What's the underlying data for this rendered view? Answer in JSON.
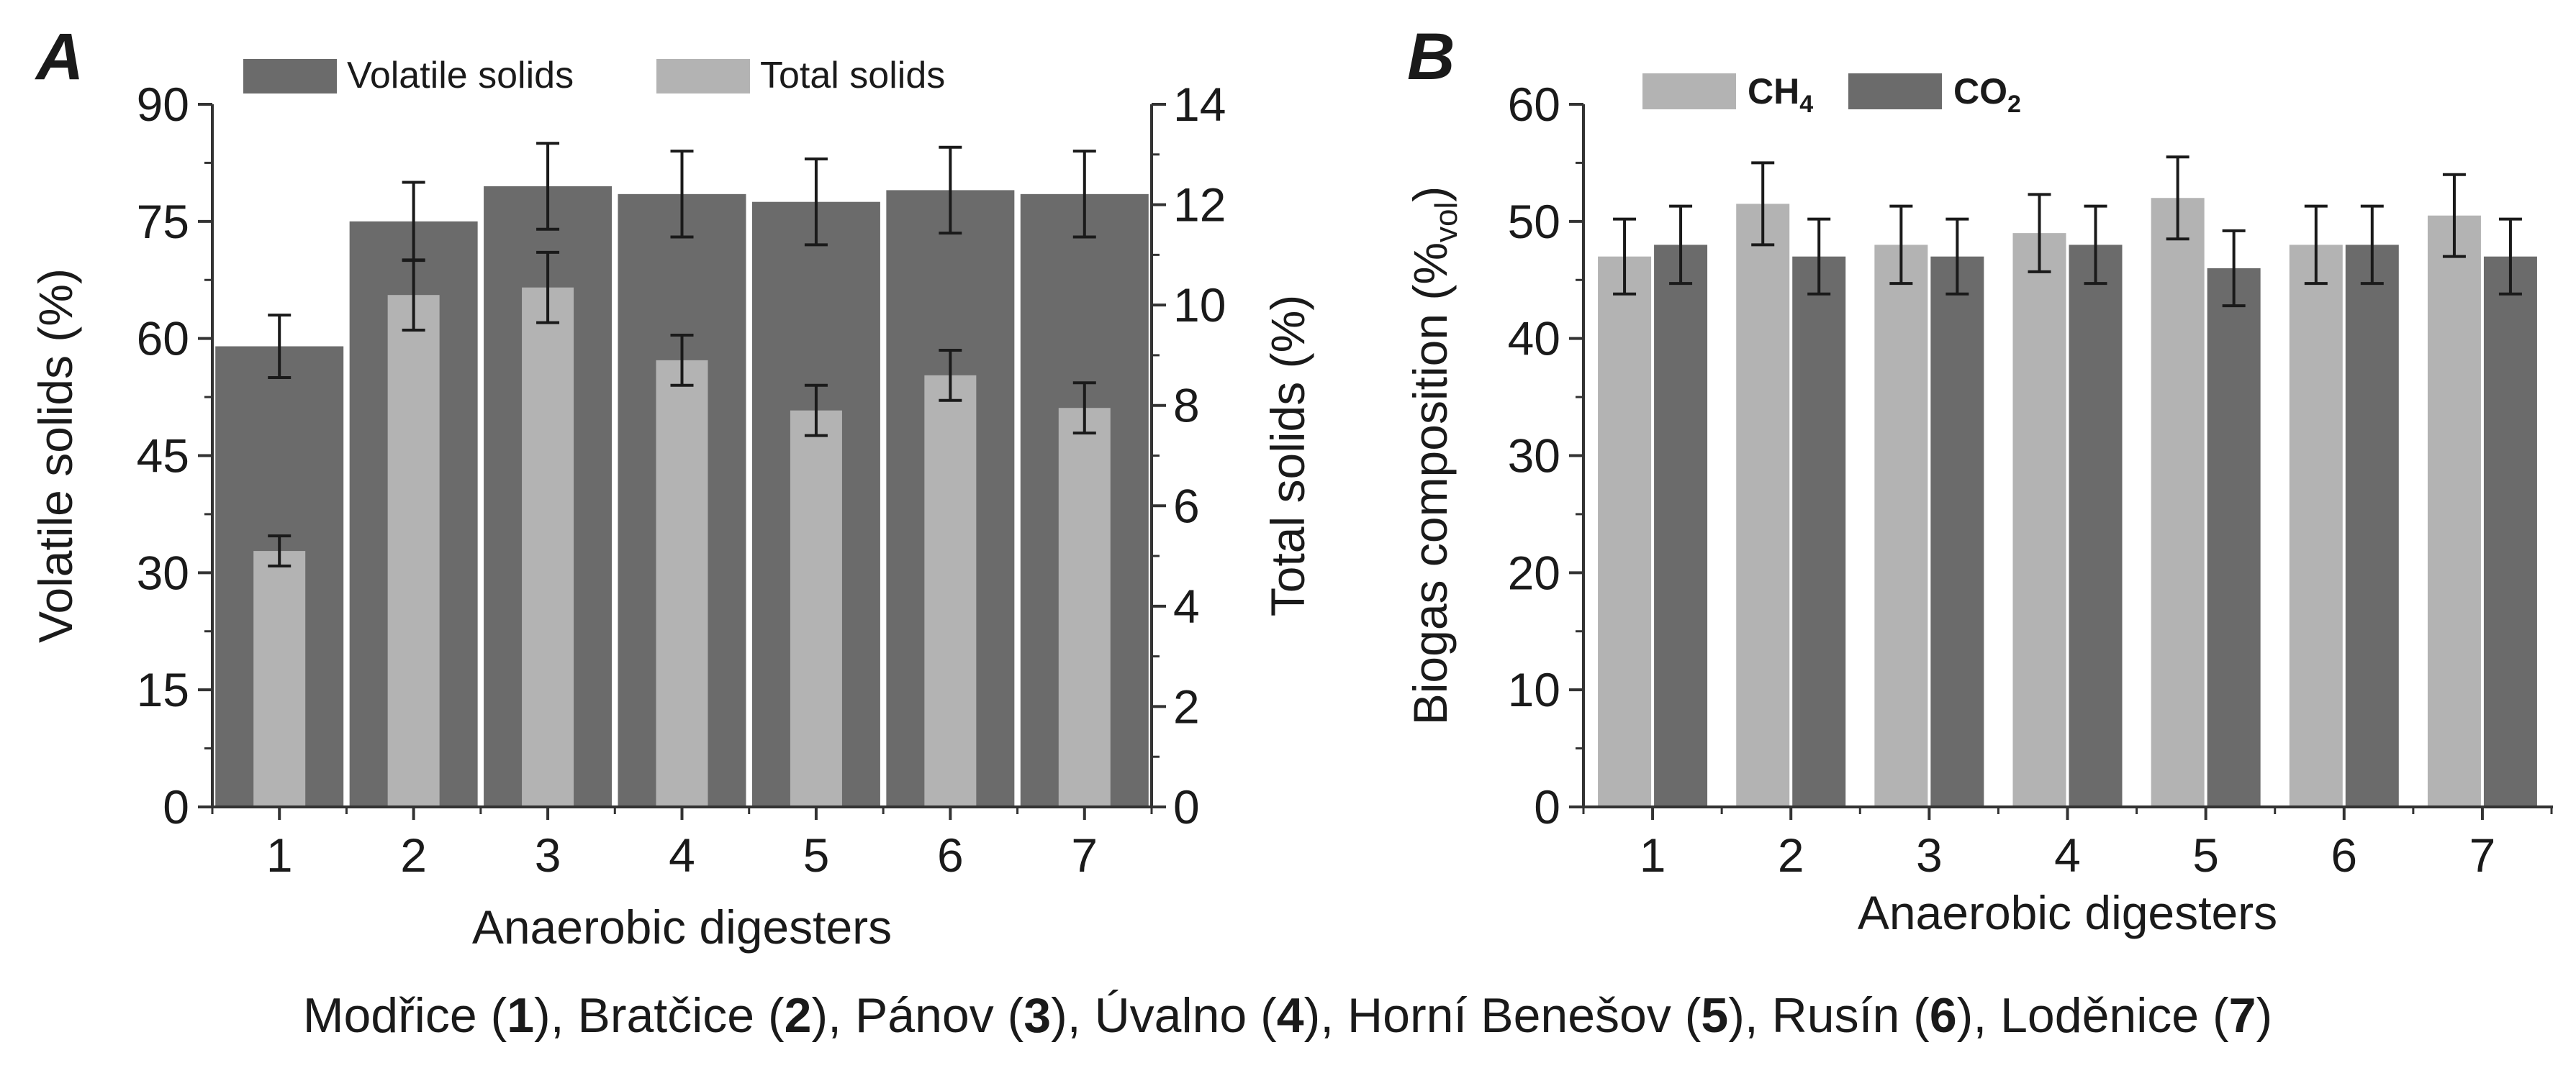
{
  "caption": {
    "items": [
      {
        "name": "Modřice",
        "num": "1"
      },
      {
        "name": "Bratčice",
        "num": "2"
      },
      {
        "name": "Pánov",
        "num": "3"
      },
      {
        "name": "Úvalno",
        "num": "4"
      },
      {
        "name": "Horní Benešov",
        "num": "5"
      },
      {
        "name": "Rusín",
        "num": "6"
      },
      {
        "name": "Loděnice",
        "num": "7"
      }
    ]
  },
  "chart_data": [
    {
      "panel": "A",
      "type": "bar",
      "categories": [
        "1",
        "2",
        "3",
        "4",
        "5",
        "6",
        "7"
      ],
      "xlabel": "Anaerobic digesters",
      "ylabel": "Volatile solids (%)",
      "ylabel_right": "Total solids (%)",
      "ylim": [
        0,
        90
      ],
      "yticks": [
        0,
        15,
        30,
        45,
        60,
        75,
        90
      ],
      "ylim_right": [
        0,
        14
      ],
      "yticks_right": [
        0,
        2,
        4,
        6,
        8,
        10,
        12,
        14
      ],
      "legend": {
        "placement": "top",
        "entries": [
          "Volatile solids",
          "Total solids"
        ]
      },
      "series": [
        {
          "name": "Volatile solids",
          "axis": "left",
          "color": "#6b6b6b",
          "values": [
            59,
            75,
            79.5,
            78.5,
            77.5,
            79,
            78.5
          ],
          "errors": [
            4,
            5,
            5.5,
            5.5,
            5.5,
            5.5,
            5.5
          ]
        },
        {
          "name": "Total solids",
          "axis": "right",
          "color": "#b3b3b3",
          "values": [
            5.1,
            10.2,
            10.35,
            8.9,
            7.9,
            8.6,
            7.95
          ],
          "errors": [
            0.3,
            0.7,
            0.7,
            0.5,
            0.5,
            0.5,
            0.5
          ]
        }
      ]
    },
    {
      "panel": "B",
      "type": "bar",
      "categories": [
        "1",
        "2",
        "3",
        "4",
        "5",
        "6",
        "7"
      ],
      "xlabel": "Anaerobic digesters",
      "ylabel_main": "Biogas composition (%",
      "ylabel_sub": "vol",
      "ylabel_end": ")",
      "ylim": [
        0,
        60
      ],
      "yticks": [
        0,
        10,
        20,
        30,
        40,
        50,
        60
      ],
      "legend": {
        "placement": "top-left",
        "entries": [
          {
            "main": "CH",
            "sub": "4"
          },
          {
            "main": "CO",
            "sub": "2"
          }
        ]
      },
      "series": [
        {
          "name": "CH4",
          "color": "#b3b3b3",
          "values": [
            47,
            51.5,
            48,
            49,
            52,
            48,
            50.5
          ],
          "errors": [
            3.2,
            3.5,
            3.3,
            3.3,
            3.5,
            3.3,
            3.5
          ]
        },
        {
          "name": "CO2",
          "color": "#6b6b6b",
          "values": [
            48,
            47,
            47,
            48,
            46,
            48,
            47
          ],
          "errors": [
            3.3,
            3.2,
            3.2,
            3.3,
            3.2,
            3.3,
            3.2
          ]
        }
      ]
    }
  ]
}
